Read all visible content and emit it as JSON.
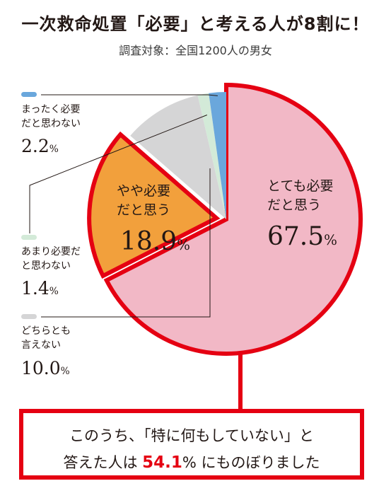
{
  "header": {
    "title": "一次救命処置「必要」と考える人が8割に！",
    "subtitle": "調査対象：全国1200人の男女"
  },
  "chart_data": {
    "type": "pie",
    "unit": "%",
    "slices": [
      {
        "name": "とても必要だと思う",
        "label_lines": [
          "とても必要",
          "だと思う"
        ],
        "value": 67.5,
        "color": "#f2b8c6",
        "exploded": false
      },
      {
        "name": "やや必要だと思う",
        "label_lines": [
          "やや必要",
          "だと思う"
        ],
        "value": 18.9,
        "color": "#f2a03c",
        "exploded": true
      },
      {
        "name": "どちらとも言えない",
        "label_lines": [
          "どちらとも",
          "言えない"
        ],
        "value": 10.0,
        "color": "#d5d5d6",
        "exploded": false
      },
      {
        "name": "あまり必要だと思わない",
        "label_lines": [
          "あまり必要だ",
          "と思わない"
        ],
        "value": 1.4,
        "color": "#d3ead8",
        "exploded": false
      },
      {
        "name": "まったく必要だと思わない",
        "label_lines": [
          "まったく必要",
          "だと思わない"
        ],
        "value": 2.2,
        "color": "#6aa7dc",
        "exploded": false
      }
    ],
    "highlight_outline_color": "#e50012"
  },
  "callout": {
    "line1": "このうち、「特に何もしていない」と",
    "line2_before": "答えた人は ",
    "highlight_value": "54.1",
    "line2_after": "% にものぼりました"
  }
}
